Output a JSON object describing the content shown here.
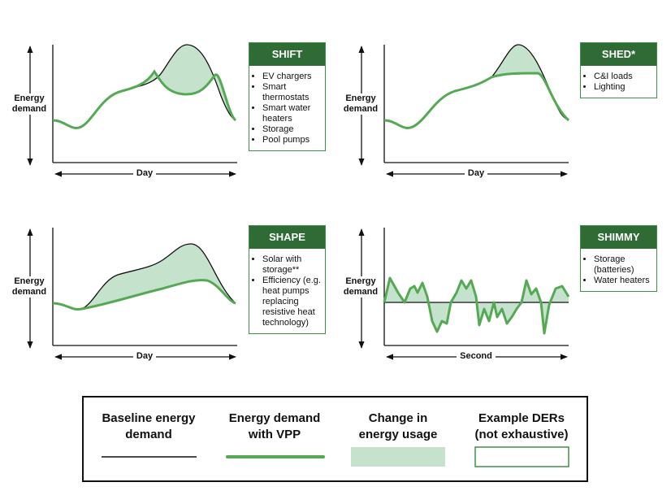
{
  "panels": [
    {
      "title": "SHIFT",
      "y_label": "Energy demand",
      "x_label": "Day",
      "items": [
        "EV chargers",
        "Smart thermostats",
        "Smart water heaters",
        "Storage",
        "Pool pumps"
      ]
    },
    {
      "title": "SHED*",
      "y_label": "Energy demand",
      "x_label": "Day",
      "items": [
        "C&I loads",
        "Lighting"
      ]
    },
    {
      "title": "SHAPE",
      "y_label": "Energy demand",
      "x_label": "Day",
      "items": [
        "Solar with storage**",
        "Efficiency (e.g. heat pumps replacing resistive heat technology)"
      ]
    },
    {
      "title": "SHIMMY",
      "y_label": "Energy demand",
      "x_label": "Second",
      "items": [
        "Storage (batteries)",
        "Water heaters"
      ]
    }
  ],
  "legend": [
    {
      "label": "Baseline energy demand"
    },
    {
      "label": "Energy demand with VPP"
    },
    {
      "label": "Change in energy usage"
    },
    {
      "label": "Example DERs (not exhaustive)"
    }
  ]
}
